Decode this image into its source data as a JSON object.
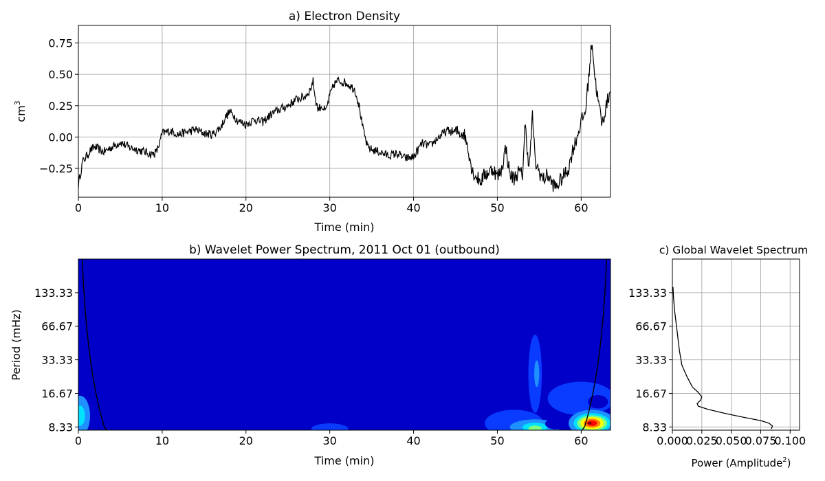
{
  "chart_data": [
    {
      "id": "a",
      "type": "line",
      "title": "a) Electron Density",
      "xlabel": "Time (min)",
      "ylabel": "cm",
      "ylabel_sup": "3",
      "xlim": [
        0,
        63.5
      ],
      "ylim": [
        -0.48,
        0.89
      ],
      "xticks": [
        0,
        10,
        20,
        30,
        40,
        50,
        60
      ],
      "xtick_labels": [
        "0",
        "10",
        "20",
        "30",
        "40",
        "50",
        "60"
      ],
      "yticks": [
        -0.25,
        0.0,
        0.25,
        0.5,
        0.75
      ],
      "ytick_labels": [
        "−0.25",
        "0.00",
        "0.25",
        "0.50",
        "0.75"
      ],
      "grid": true,
      "line_color": "#000000",
      "series": [
        {
          "x": [
            0,
            0.5,
            1,
            1.5,
            2,
            3,
            4,
            5,
            6,
            7,
            8,
            8.7,
            9.3,
            9.7,
            10,
            10.5,
            11,
            12,
            13,
            14,
            15,
            16,
            17,
            17.5,
            18,
            18.5,
            19,
            20,
            21,
            22,
            23,
            24,
            25,
            26,
            27,
            27.7,
            28,
            28.3,
            28.6,
            29,
            29.5,
            30,
            30.5,
            31,
            32,
            33,
            33.5,
            34,
            34.5,
            35,
            36,
            37,
            38,
            39,
            40,
            41,
            42,
            43,
            44,
            45,
            46,
            46.5,
            47,
            47.5,
            48,
            48.5,
            49,
            49.5,
            50,
            50.5,
            51,
            51.5,
            52,
            52.5,
            53,
            53.3,
            53.8,
            54.2,
            54.5,
            55,
            55.5,
            56,
            56.5,
            57,
            57.5,
            58,
            58.5,
            59,
            59.5,
            60,
            60.5,
            61,
            61.3,
            61.6,
            62,
            62.5,
            63,
            63.5
          ],
          "y": [
            -0.38,
            -0.2,
            -0.15,
            -0.1,
            -0.08,
            -0.12,
            -0.08,
            -0.04,
            -0.08,
            -0.1,
            -0.12,
            -0.14,
            -0.12,
            -0.05,
            0.03,
            0.04,
            0.05,
            0.02,
            0.04,
            0.06,
            0.03,
            0.02,
            0.08,
            0.15,
            0.2,
            0.18,
            0.13,
            0.1,
            0.14,
            0.12,
            0.18,
            0.22,
            0.25,
            0.3,
            0.32,
            0.38,
            0.45,
            0.3,
            0.22,
            0.25,
            0.2,
            0.33,
            0.42,
            0.45,
            0.43,
            0.38,
            0.25,
            0.05,
            -0.08,
            -0.1,
            -0.12,
            -0.15,
            -0.13,
            -0.17,
            -0.16,
            -0.05,
            -0.07,
            0.0,
            0.05,
            0.04,
            0.03,
            -0.08,
            -0.27,
            -0.32,
            -0.35,
            -0.3,
            -0.28,
            -0.25,
            -0.32,
            -0.26,
            -0.08,
            -0.3,
            -0.33,
            -0.28,
            -0.3,
            0.1,
            -0.25,
            0.18,
            -0.2,
            -0.28,
            -0.34,
            -0.3,
            -0.37,
            -0.4,
            -0.35,
            -0.3,
            -0.25,
            -0.1,
            0.0,
            0.12,
            0.2,
            0.55,
            0.78,
            0.5,
            0.3,
            0.1,
            0.25,
            0.38
          ]
        }
      ]
    },
    {
      "id": "b",
      "type": "heatmap",
      "title": "b) Wavelet Power Spectrum, 2011 Oct 01 (outbound)",
      "xlabel": "Time (min)",
      "ylabel": "Period (mHz)",
      "xlim": [
        0,
        63.5
      ],
      "yscale": "log",
      "ylim": [
        7.8,
        266.67
      ],
      "xticks": [
        0,
        10,
        20,
        30,
        40,
        50,
        60
      ],
      "xtick_labels": [
        "0",
        "10",
        "20",
        "30",
        "40",
        "50",
        "60"
      ],
      "yticks": [
        8.33,
        16.67,
        33.33,
        66.67,
        133.33
      ],
      "ytick_labels": [
        "8.33",
        "16.67",
        "33.33",
        "66.67",
        "133.33"
      ],
      "background_color": "#0000c8",
      "cone_of_influence": true,
      "contour_colors": [
        "#0000c8",
        "#0a3cff",
        "#1e90ff",
        "#00e0ff",
        "#7fff7f",
        "#ffff00",
        "#ff8000",
        "#ff0000",
        "#800000"
      ],
      "blobs": [
        {
          "x": 0.2,
          "y": 10.5,
          "rx": 1.2,
          "ry_log": 0.18,
          "level": 2
        },
        {
          "x": 0.2,
          "y": 10.5,
          "rx": 0.6,
          "ry_log": 0.09,
          "level": 3
        },
        {
          "x": 30,
          "y": 8.0,
          "rx": 2.2,
          "ry_log": 0.05,
          "level": 1
        },
        {
          "x": 54.5,
          "y": 25,
          "rx": 0.8,
          "ry_log": 0.35,
          "level": 1
        },
        {
          "x": 54.7,
          "y": 25,
          "rx": 0.3,
          "ry_log": 0.12,
          "level": 2
        },
        {
          "x": 52,
          "y": 9.0,
          "rx": 3.5,
          "ry_log": 0.12,
          "level": 1
        },
        {
          "x": 54.5,
          "y": 8.3,
          "rx": 3.0,
          "ry_log": 0.07,
          "level": 2
        },
        {
          "x": 54.5,
          "y": 8.3,
          "rx": 1.5,
          "ry_log": 0.04,
          "level": 3
        },
        {
          "x": 54.5,
          "y": 8.1,
          "rx": 0.8,
          "ry_log": 0.025,
          "level": 4
        },
        {
          "x": 57,
          "y": 8.9,
          "rx": 1.3,
          "ry_log": 0.05,
          "level": 0
        },
        {
          "x": 60,
          "y": 15,
          "rx": 4.0,
          "ry_log": 0.15,
          "level": 1
        },
        {
          "x": 62,
          "y": 14,
          "rx": 1.2,
          "ry_log": 0.06,
          "level": 0
        },
        {
          "x": 61.3,
          "y": 9.0,
          "rx": 2.8,
          "ry_log": 0.12,
          "level": 2
        },
        {
          "x": 61.3,
          "y": 9.0,
          "rx": 2.2,
          "ry_log": 0.09,
          "level": 3
        },
        {
          "x": 61.3,
          "y": 9.0,
          "rx": 1.8,
          "ry_log": 0.07,
          "level": 4
        },
        {
          "x": 61.3,
          "y": 9.0,
          "rx": 1.4,
          "ry_log": 0.055,
          "level": 5
        },
        {
          "x": 61.3,
          "y": 9.0,
          "rx": 1.0,
          "ry_log": 0.04,
          "level": 6
        },
        {
          "x": 61.3,
          "y": 9.0,
          "rx": 0.6,
          "ry_log": 0.025,
          "level": 7
        },
        {
          "x": 61.0,
          "y": 9.0,
          "rx": 0.25,
          "ry_log": 0.012,
          "level": 8
        }
      ]
    },
    {
      "id": "c",
      "type": "line",
      "title": "c) Global Wavelet Spectrum",
      "xlabel": "Power (Amplitude",
      "xlabel_sup": "2",
      "xlabel_suffix": ")",
      "xlim": [
        0.0,
        0.108
      ],
      "yscale": "log",
      "ylim": [
        7.8,
        266.67
      ],
      "xticks": [
        0.0,
        0.025,
        0.05,
        0.075,
        0.1
      ],
      "xtick_labels": [
        "0.000",
        "0.025",
        "0.050",
        "0.075",
        "0.100"
      ],
      "yticks": [
        8.33,
        16.67,
        33.33,
        66.67,
        133.33
      ],
      "ytick_labels": [
        "8.33",
        "16.67",
        "33.33",
        "66.67",
        "133.33"
      ],
      "grid": true,
      "line_color": "#000000",
      "series": [
        {
          "power": [
            0.0005,
            0.001,
            0.002,
            0.004,
            0.006,
            0.007,
            0.008,
            0.012,
            0.017,
            0.022,
            0.025,
            0.024,
            0.021,
            0.022,
            0.03,
            0.045,
            0.06,
            0.075,
            0.082,
            0.085,
            0.084
          ],
          "period": [
            150,
            120,
            90,
            60,
            40,
            35,
            30,
            24,
            19,
            17,
            15.5,
            14.5,
            13.5,
            12.8,
            12.0,
            11.0,
            10.2,
            9.5,
            9.0,
            8.5,
            8.0
          ]
        }
      ]
    }
  ]
}
